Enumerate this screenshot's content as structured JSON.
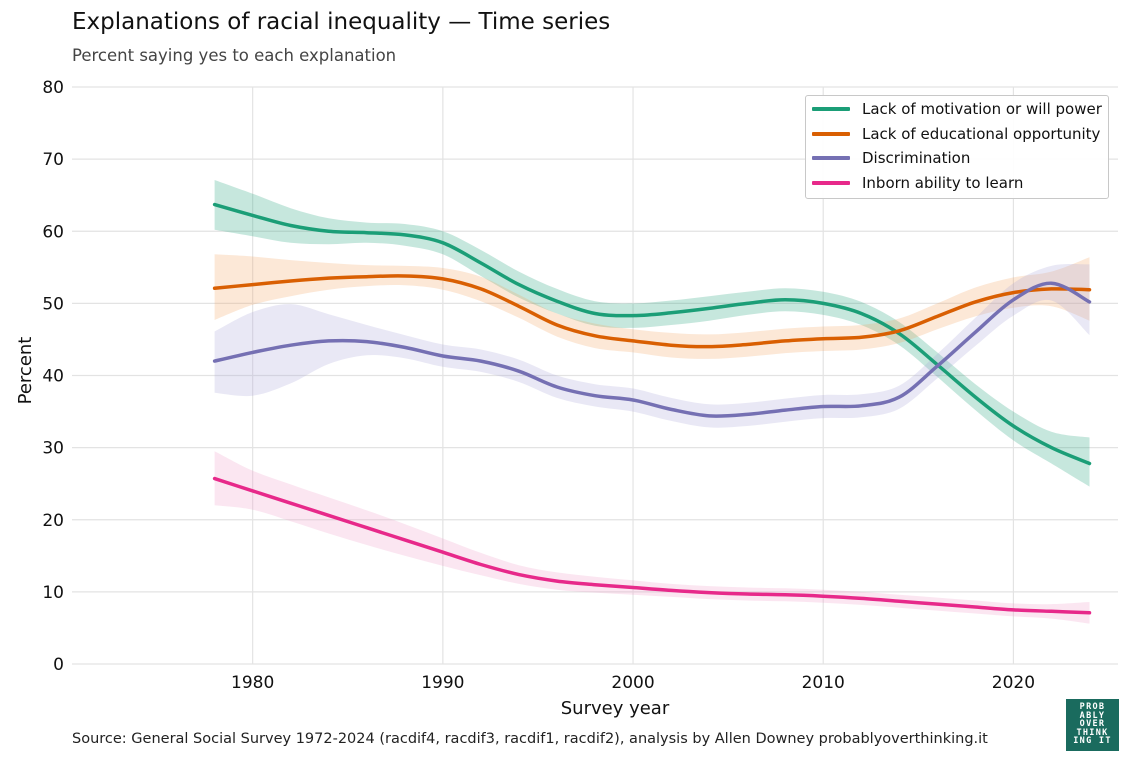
{
  "title": "Explanations of racial inequality — Time series",
  "subtitle": "Percent saying yes to each explanation",
  "source": "Source: General Social Survey 1972-2024 (racdif4, racdif3, racdif1, racdif2), analysis by Allen Downey probablyoverthinking.it",
  "logo_text": "PROBABLYOVERTHINKINGIT",
  "chart_data": {
    "type": "line",
    "xlabel": "Survey year",
    "ylabel": "Percent",
    "xlim": [
      1970.5,
      2025.5
    ],
    "ylim": [
      0,
      80
    ],
    "x_ticks": [
      1980,
      1990,
      2000,
      2010,
      2020
    ],
    "y_ticks": [
      0,
      10,
      20,
      30,
      40,
      50,
      60,
      70,
      80
    ],
    "grid": true,
    "legend_position": "top-right",
    "x": [
      1978,
      1980,
      1982,
      1984,
      1986,
      1988,
      1990,
      1992,
      1994,
      1996,
      1998,
      2000,
      2002,
      2004,
      2006,
      2008,
      2010,
      2012,
      2014,
      2016,
      2018,
      2020,
      2022,
      2024
    ],
    "series": [
      {
        "name": "Lack of motivation or will power",
        "color": "#1b9e77",
        "band_color": "#1b9e77",
        "values": [
          63.7,
          62.2,
          60.8,
          60.0,
          59.8,
          59.5,
          58.4,
          55.6,
          52.6,
          50.3,
          48.6,
          48.3,
          48.7,
          49.3,
          50.0,
          50.5,
          50.0,
          48.6,
          45.8,
          41.5,
          37.0,
          33.0,
          30.0,
          27.8
        ],
        "lower": [
          60.2,
          59.3,
          58.4,
          58.2,
          58.4,
          58.0,
          56.8,
          53.8,
          50.8,
          48.6,
          46.9,
          46.6,
          47.0,
          47.6,
          48.4,
          48.9,
          48.4,
          47.0,
          44.2,
          39.8,
          35.2,
          31.0,
          27.8,
          24.6
        ],
        "upper": [
          67.1,
          65.2,
          63.2,
          61.8,
          61.2,
          61.0,
          60.0,
          57.4,
          54.4,
          52.0,
          50.3,
          50.0,
          50.4,
          51.0,
          51.6,
          52.1,
          51.6,
          50.2,
          47.4,
          43.2,
          38.8,
          35.0,
          32.2,
          31.4
        ]
      },
      {
        "name": "Lack of educational opportunity",
        "color": "#d95f02",
        "band_color": "#f4a460",
        "values": [
          52.1,
          52.6,
          53.1,
          53.5,
          53.7,
          53.8,
          53.4,
          52.0,
          49.6,
          47.0,
          45.5,
          44.8,
          44.2,
          44.0,
          44.3,
          44.8,
          45.1,
          45.3,
          46.2,
          48.2,
          50.2,
          51.5,
          52.0,
          51.9
        ],
        "lower": [
          47.7,
          49.8,
          51.0,
          51.9,
          52.4,
          52.5,
          51.9,
          50.3,
          48.0,
          45.4,
          43.8,
          43.2,
          42.5,
          42.3,
          42.6,
          43.1,
          43.4,
          43.6,
          44.5,
          46.4,
          48.2,
          49.4,
          49.6,
          47.6
        ],
        "upper": [
          56.8,
          56.5,
          56.0,
          55.6,
          55.3,
          55.2,
          54.9,
          53.7,
          51.2,
          48.6,
          47.2,
          46.4,
          45.9,
          45.7,
          46.0,
          46.5,
          46.8,
          47.0,
          47.9,
          50.0,
          52.2,
          53.6,
          54.4,
          56.4
        ]
      },
      {
        "name": "Discrimination",
        "color": "#7570b3",
        "band_color": "#a6a3d6",
        "values": [
          42.0,
          43.2,
          44.2,
          44.8,
          44.7,
          43.9,
          42.7,
          42.0,
          40.6,
          38.4,
          37.2,
          36.6,
          35.3,
          34.4,
          34.6,
          35.2,
          35.7,
          35.8,
          37.0,
          41.3,
          46.0,
          50.5,
          52.8,
          50.2
        ],
        "lower": [
          37.6,
          37.2,
          38.9,
          41.6,
          42.8,
          42.4,
          41.2,
          40.5,
          39.1,
          36.9,
          35.7,
          35.0,
          33.7,
          32.8,
          33.0,
          33.6,
          34.1,
          34.2,
          35.4,
          39.6,
          44.1,
          48.3,
          50.4,
          45.6
        ],
        "upper": [
          46.1,
          48.8,
          49.9,
          48.5,
          47.0,
          45.6,
          44.3,
          43.6,
          42.2,
          40.0,
          38.8,
          38.2,
          36.9,
          36.0,
          36.2,
          36.8,
          37.3,
          37.4,
          38.6,
          43.0,
          48.0,
          52.8,
          55.2,
          55.4
        ]
      },
      {
        "name": "Inborn ability to learn",
        "color": "#e7298a",
        "band_color": "#f19cc8",
        "values": [
          25.7,
          24.0,
          22.3,
          20.6,
          18.9,
          17.2,
          15.5,
          13.8,
          12.4,
          11.5,
          11.0,
          10.6,
          10.2,
          9.9,
          9.7,
          9.6,
          9.4,
          9.1,
          8.7,
          8.3,
          7.9,
          7.5,
          7.3,
          7.1
        ],
        "lower": [
          22.0,
          21.4,
          19.8,
          18.1,
          16.5,
          15.0,
          13.6,
          12.3,
          11.1,
          10.3,
          9.9,
          9.6,
          9.3,
          9.0,
          8.8,
          8.7,
          8.5,
          8.2,
          7.8,
          7.4,
          7.0,
          6.6,
          6.3,
          5.6
        ],
        "upper": [
          29.5,
          26.8,
          24.9,
          23.1,
          21.3,
          19.4,
          17.4,
          15.4,
          13.7,
          12.7,
          12.1,
          11.6,
          11.1,
          10.8,
          10.6,
          10.5,
          10.3,
          10.0,
          9.6,
          9.2,
          8.8,
          8.4,
          8.3,
          8.6
        ]
      }
    ]
  }
}
